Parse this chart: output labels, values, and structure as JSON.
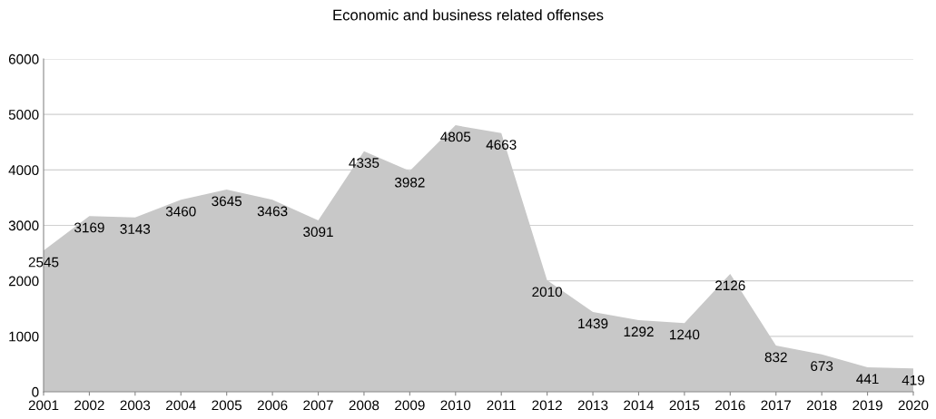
{
  "chart_data": {
    "type": "area",
    "title": "Economic and business related offenses",
    "categories": [
      "2001",
      "2002",
      "2003",
      "2004",
      "2005",
      "2006",
      "2007",
      "2008",
      "2009",
      "2010",
      "2011",
      "2012",
      "2013",
      "2014",
      "2015",
      "2016",
      "2017",
      "2018",
      "2019",
      "2020"
    ],
    "values": [
      2545,
      3169,
      3143,
      3460,
      3645,
      3463,
      3091,
      4335,
      3982,
      4805,
      4663,
      2010,
      1439,
      1292,
      1240,
      2126,
      832,
      673,
      441,
      419
    ],
    "color": "#c8c8c8",
    "ylim": [
      0,
      6000
    ],
    "yticks": [
      0,
      1000,
      2000,
      3000,
      4000,
      5000,
      6000
    ],
    "grid": "y",
    "data_labels": true,
    "legend": false
  }
}
